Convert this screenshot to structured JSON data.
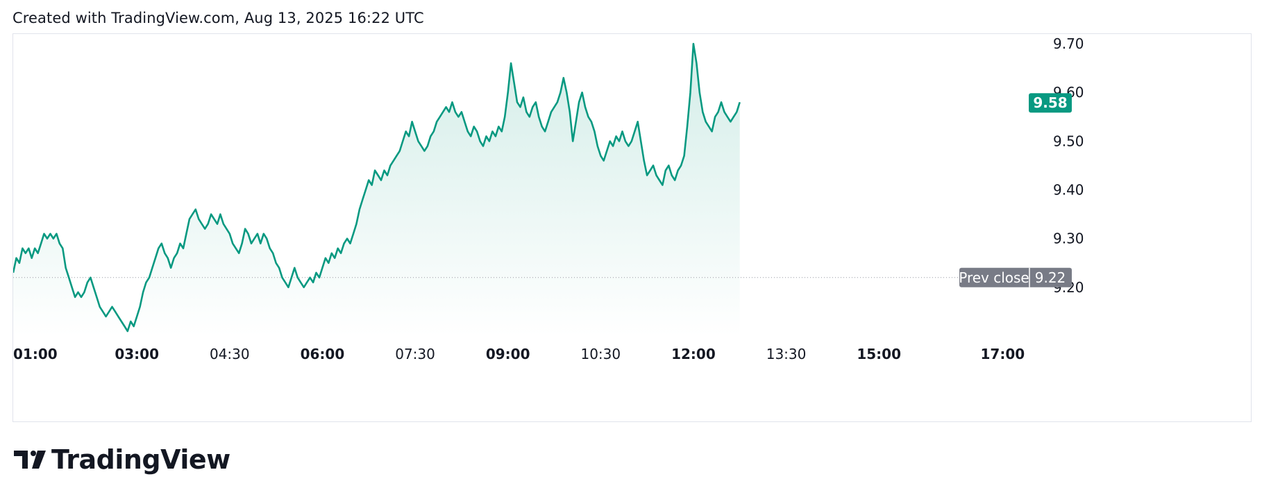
{
  "header": {
    "created_text": "Created with TradingView.com, Aug 13, 2025 16:22 UTC"
  },
  "brand": {
    "name": "TradingView",
    "logo_icon": "tradingview-logo-icon"
  },
  "colors": {
    "line": "#089981",
    "fill_top": "#d3ede8",
    "fill_bottom": "#ffffff",
    "prev_close_badge": "#787b86",
    "border": "#e0e3eb"
  },
  "chart_data": {
    "type": "area",
    "title": "",
    "xlabel": "",
    "ylabel": "",
    "ylim": [
      9.1,
      9.72
    ],
    "y_ticks": [
      9.2,
      9.3,
      9.4,
      9.5,
      9.6,
      9.7
    ],
    "x_ticks": [
      {
        "label": "01:00",
        "t": 60,
        "bold": true
      },
      {
        "label": "03:00",
        "t": 180,
        "bold": true
      },
      {
        "label": "04:30",
        "t": 270,
        "bold": false
      },
      {
        "label": "06:00",
        "t": 360,
        "bold": true
      },
      {
        "label": "07:30",
        "t": 450,
        "bold": false
      },
      {
        "label": "09:00",
        "t": 540,
        "bold": true
      },
      {
        "label": "10:30",
        "t": 630,
        "bold": false
      },
      {
        "label": "12:00",
        "t": 720,
        "bold": true
      },
      {
        "label": "13:30",
        "t": 810,
        "bold": false
      },
      {
        "label": "15:00",
        "t": 900,
        "bold": true
      },
      {
        "label": "17:00",
        "t": 1020,
        "bold": true
      }
    ],
    "x_range_minutes": [
      60,
      1042
    ],
    "series": [
      {
        "points": [
          [
            60,
            9.23
          ],
          [
            63,
            9.26
          ],
          [
            66,
            9.25
          ],
          [
            69,
            9.28
          ],
          [
            72,
            9.27
          ],
          [
            75,
            9.28
          ],
          [
            78,
            9.26
          ],
          [
            81,
            9.28
          ],
          [
            84,
            9.27
          ],
          [
            87,
            9.29
          ],
          [
            90,
            9.31
          ],
          [
            93,
            9.3
          ],
          [
            96,
            9.31
          ],
          [
            99,
            9.3
          ],
          [
            102,
            9.31
          ],
          [
            105,
            9.29
          ],
          [
            108,
            9.28
          ],
          [
            111,
            9.24
          ],
          [
            114,
            9.22
          ],
          [
            117,
            9.2
          ],
          [
            120,
            9.18
          ],
          [
            123,
            9.19
          ],
          [
            126,
            9.18
          ],
          [
            129,
            9.19
          ],
          [
            132,
            9.21
          ],
          [
            135,
            9.22
          ],
          [
            138,
            9.2
          ],
          [
            141,
            9.18
          ],
          [
            144,
            9.16
          ],
          [
            147,
            9.15
          ],
          [
            150,
            9.14
          ],
          [
            153,
            9.15
          ],
          [
            156,
            9.16
          ],
          [
            159,
            9.15
          ],
          [
            162,
            9.14
          ],
          [
            165,
            9.13
          ],
          [
            168,
            9.12
          ],
          [
            171,
            9.11
          ],
          [
            174,
            9.13
          ],
          [
            177,
            9.12
          ],
          [
            180,
            9.14
          ],
          [
            183,
            9.16
          ],
          [
            186,
            9.19
          ],
          [
            189,
            9.21
          ],
          [
            192,
            9.22
          ],
          [
            195,
            9.24
          ],
          [
            198,
            9.26
          ],
          [
            201,
            9.28
          ],
          [
            204,
            9.29
          ],
          [
            207,
            9.27
          ],
          [
            210,
            9.26
          ],
          [
            213,
            9.24
          ],
          [
            216,
            9.26
          ],
          [
            219,
            9.27
          ],
          [
            222,
            9.29
          ],
          [
            225,
            9.28
          ],
          [
            228,
            9.31
          ],
          [
            231,
            9.34
          ],
          [
            234,
            9.35
          ],
          [
            237,
            9.36
          ],
          [
            240,
            9.34
          ],
          [
            243,
            9.33
          ],
          [
            246,
            9.32
          ],
          [
            249,
            9.33
          ],
          [
            252,
            9.35
          ],
          [
            255,
            9.34
          ],
          [
            258,
            9.33
          ],
          [
            261,
            9.35
          ],
          [
            264,
            9.33
          ],
          [
            267,
            9.32
          ],
          [
            270,
            9.31
          ],
          [
            273,
            9.29
          ],
          [
            276,
            9.28
          ],
          [
            279,
            9.27
          ],
          [
            282,
            9.29
          ],
          [
            285,
            9.32
          ],
          [
            288,
            9.31
          ],
          [
            291,
            9.29
          ],
          [
            294,
            9.3
          ],
          [
            297,
            9.31
          ],
          [
            300,
            9.29
          ],
          [
            303,
            9.31
          ],
          [
            306,
            9.3
          ],
          [
            309,
            9.28
          ],
          [
            312,
            9.27
          ],
          [
            315,
            9.25
          ],
          [
            318,
            9.24
          ],
          [
            321,
            9.22
          ],
          [
            324,
            9.21
          ],
          [
            327,
            9.2
          ],
          [
            330,
            9.22
          ],
          [
            333,
            9.24
          ],
          [
            336,
            9.22
          ],
          [
            339,
            9.21
          ],
          [
            342,
            9.2
          ],
          [
            345,
            9.21
          ],
          [
            348,
            9.22
          ],
          [
            351,
            9.21
          ],
          [
            354,
            9.23
          ],
          [
            357,
            9.22
          ],
          [
            360,
            9.24
          ],
          [
            363,
            9.26
          ],
          [
            366,
            9.25
          ],
          [
            369,
            9.27
          ],
          [
            372,
            9.26
          ],
          [
            375,
            9.28
          ],
          [
            378,
            9.27
          ],
          [
            381,
            9.29
          ],
          [
            384,
            9.3
          ],
          [
            387,
            9.29
          ],
          [
            390,
            9.31
          ],
          [
            393,
            9.33
          ],
          [
            396,
            9.36
          ],
          [
            399,
            9.38
          ],
          [
            402,
            9.4
          ],
          [
            405,
            9.42
          ],
          [
            408,
            9.41
          ],
          [
            411,
            9.44
          ],
          [
            414,
            9.43
          ],
          [
            417,
            9.42
          ],
          [
            420,
            9.44
          ],
          [
            423,
            9.43
          ],
          [
            426,
            9.45
          ],
          [
            429,
            9.46
          ],
          [
            432,
            9.47
          ],
          [
            435,
            9.48
          ],
          [
            438,
            9.5
          ],
          [
            441,
            9.52
          ],
          [
            444,
            9.51
          ],
          [
            447,
            9.54
          ],
          [
            450,
            9.52
          ],
          [
            453,
            9.5
          ],
          [
            456,
            9.49
          ],
          [
            459,
            9.48
          ],
          [
            462,
            9.49
          ],
          [
            465,
            9.51
          ],
          [
            468,
            9.52
          ],
          [
            471,
            9.54
          ],
          [
            474,
            9.55
          ],
          [
            477,
            9.56
          ],
          [
            480,
            9.57
          ],
          [
            483,
            9.56
          ],
          [
            486,
            9.58
          ],
          [
            489,
            9.56
          ],
          [
            492,
            9.55
          ],
          [
            495,
            9.56
          ],
          [
            498,
            9.54
          ],
          [
            501,
            9.52
          ],
          [
            504,
            9.51
          ],
          [
            507,
            9.53
          ],
          [
            510,
            9.52
          ],
          [
            513,
            9.5
          ],
          [
            516,
            9.49
          ],
          [
            519,
            9.51
          ],
          [
            522,
            9.5
          ],
          [
            525,
            9.52
          ],
          [
            528,
            9.51
          ],
          [
            531,
            9.53
          ],
          [
            534,
            9.52
          ],
          [
            537,
            9.55
          ],
          [
            540,
            9.6
          ],
          [
            543,
            9.66
          ],
          [
            546,
            9.62
          ],
          [
            549,
            9.58
          ],
          [
            552,
            9.57
          ],
          [
            555,
            9.59
          ],
          [
            558,
            9.56
          ],
          [
            561,
            9.55
          ],
          [
            564,
            9.57
          ],
          [
            567,
            9.58
          ],
          [
            570,
            9.55
          ],
          [
            573,
            9.53
          ],
          [
            576,
            9.52
          ],
          [
            579,
            9.54
          ],
          [
            582,
            9.56
          ],
          [
            585,
            9.57
          ],
          [
            588,
            9.58
          ],
          [
            591,
            9.6
          ],
          [
            594,
            9.63
          ],
          [
            597,
            9.6
          ],
          [
            600,
            9.56
          ],
          [
            603,
            9.5
          ],
          [
            606,
            9.54
          ],
          [
            609,
            9.58
          ],
          [
            612,
            9.6
          ],
          [
            615,
            9.57
          ],
          [
            618,
            9.55
          ],
          [
            621,
            9.54
          ],
          [
            624,
            9.52
          ],
          [
            627,
            9.49
          ],
          [
            630,
            9.47
          ],
          [
            633,
            9.46
          ],
          [
            636,
            9.48
          ],
          [
            639,
            9.5
          ],
          [
            642,
            9.49
          ],
          [
            645,
            9.51
          ],
          [
            648,
            9.5
          ],
          [
            651,
            9.52
          ],
          [
            654,
            9.5
          ],
          [
            657,
            9.49
          ],
          [
            660,
            9.5
          ],
          [
            663,
            9.52
          ],
          [
            666,
            9.54
          ],
          [
            669,
            9.5
          ],
          [
            672,
            9.46
          ],
          [
            675,
            9.43
          ],
          [
            678,
            9.44
          ],
          [
            681,
            9.45
          ],
          [
            684,
            9.43
          ],
          [
            687,
            9.42
          ],
          [
            690,
            9.41
          ],
          [
            693,
            9.44
          ],
          [
            696,
            9.45
          ],
          [
            699,
            9.43
          ],
          [
            702,
            9.42
          ],
          [
            705,
            9.44
          ],
          [
            708,
            9.45
          ],
          [
            711,
            9.47
          ],
          [
            714,
            9.53
          ],
          [
            717,
            9.6
          ],
          [
            720,
            9.7
          ],
          [
            723,
            9.66
          ],
          [
            726,
            9.6
          ],
          [
            729,
            9.56
          ],
          [
            732,
            9.54
          ],
          [
            735,
            9.53
          ],
          [
            738,
            9.52
          ],
          [
            741,
            9.55
          ],
          [
            744,
            9.56
          ],
          [
            747,
            9.58
          ],
          [
            750,
            9.56
          ],
          [
            753,
            9.55
          ],
          [
            756,
            9.54
          ],
          [
            759,
            9.55
          ],
          [
            762,
            9.56
          ],
          [
            765,
            9.58
          ]
        ]
      }
    ],
    "prev_close": {
      "label": "Prev close",
      "value": "9.22",
      "y": 9.22
    },
    "last_price": {
      "value": "9.58",
      "y": 9.58
    }
  }
}
